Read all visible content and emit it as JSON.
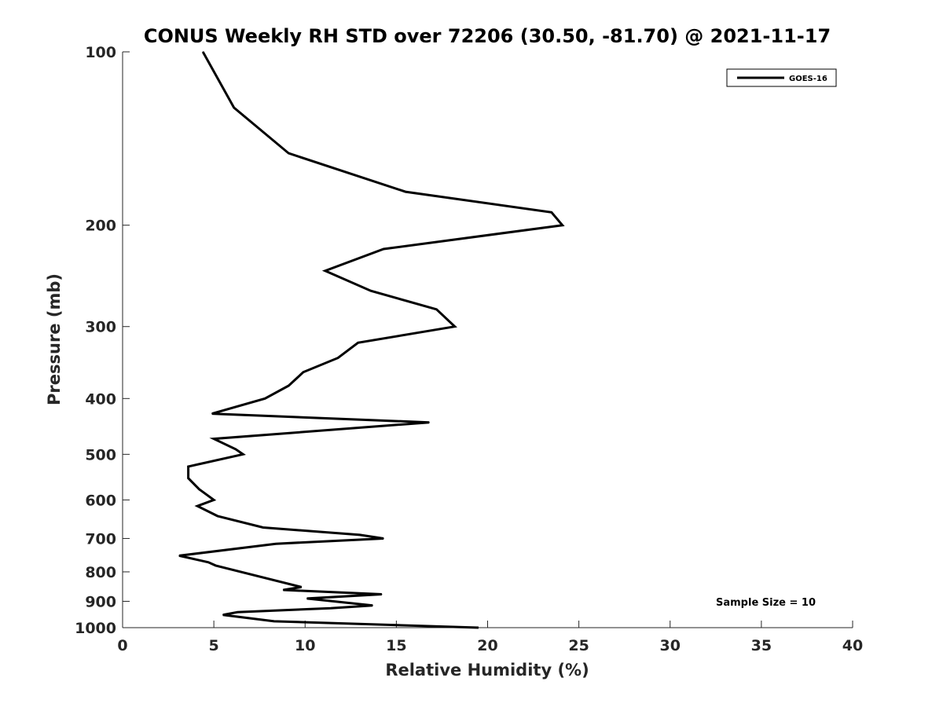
{
  "chart_data": {
    "type": "line",
    "title": "CONUS Weekly RH STD over 72206 (30.50, -81.70) @ 2021-11-17",
    "xlabel": "Relative Humidity (%)",
    "ylabel": "Pressure (mb)",
    "xlim": [
      0,
      40
    ],
    "ylim": [
      100,
      1000
    ],
    "y_scale": "log",
    "y_reversed": true,
    "xticks": [
      "0",
      "5",
      "10",
      "15",
      "20",
      "25",
      "30",
      "35",
      "40"
    ],
    "yticks": [
      "100",
      "200",
      "300",
      "400",
      "500",
      "600",
      "700",
      "800",
      "900",
      "1000"
    ],
    "grid": false,
    "legend_position": "top-right",
    "annotation": "Sample Size = 10",
    "series": [
      {
        "name": "GOES-16",
        "color": "#000000",
        "points": [
          [
            4.4,
            100
          ],
          [
            6.1,
            125
          ],
          [
            9.1,
            150
          ],
          [
            15.5,
            175
          ],
          [
            23.5,
            190
          ],
          [
            24.1,
            200
          ],
          [
            14.3,
            220
          ],
          [
            11.1,
            240
          ],
          [
            13.6,
            260
          ],
          [
            17.2,
            280
          ],
          [
            18.2,
            300
          ],
          [
            12.9,
            320
          ],
          [
            11.8,
            340
          ],
          [
            9.9,
            360
          ],
          [
            9.1,
            380
          ],
          [
            7.8,
            400
          ],
          [
            4.9,
            425
          ],
          [
            16.8,
            440
          ],
          [
            5.0,
            470
          ],
          [
            6.2,
            490
          ],
          [
            6.6,
            500
          ],
          [
            3.6,
            525
          ],
          [
            3.6,
            550
          ],
          [
            4.2,
            575
          ],
          [
            5.0,
            600
          ],
          [
            4.1,
            615
          ],
          [
            5.2,
            640
          ],
          [
            7.7,
            670
          ],
          [
            13.0,
            690
          ],
          [
            14.3,
            700
          ],
          [
            8.4,
            715
          ],
          [
            3.1,
            750
          ],
          [
            4.7,
            770
          ],
          [
            5.1,
            780
          ],
          [
            9.8,
            850
          ],
          [
            8.8,
            860
          ],
          [
            14.2,
            875
          ],
          [
            10.1,
            890
          ],
          [
            13.7,
            915
          ],
          [
            11.4,
            925
          ],
          [
            6.3,
            940
          ],
          [
            5.5,
            950
          ],
          [
            8.3,
            975
          ],
          [
            19.5,
            1000
          ]
        ]
      }
    ]
  }
}
